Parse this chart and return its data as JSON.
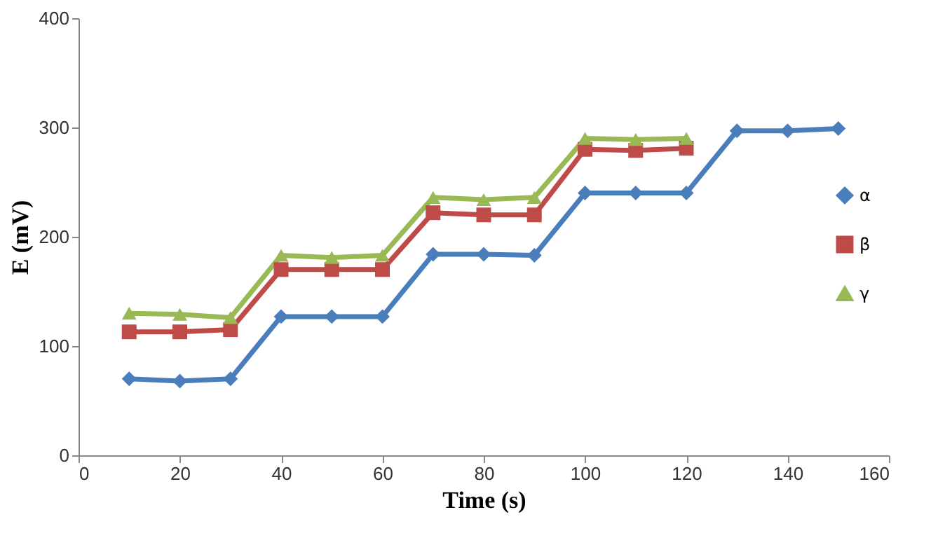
{
  "chart_data": {
    "type": "line",
    "xlabel": "Time (s)",
    "ylabel": "E (mV)",
    "xlim": [
      0,
      160
    ],
    "xticks": [
      0,
      20,
      40,
      60,
      80,
      100,
      120,
      140,
      160
    ],
    "ylim": [
      0,
      400
    ],
    "yticks": [
      0,
      100,
      200,
      300,
      400
    ],
    "grid": false,
    "legend": "right",
    "series": [
      {
        "name": "α",
        "color": "#4a7ebb",
        "marker": "diamond",
        "x": [
          10,
          20,
          30,
          40,
          50,
          60,
          70,
          80,
          90,
          100,
          110,
          120,
          130,
          140,
          150
        ],
        "values": [
          70,
          68,
          70,
          127,
          127,
          127,
          184,
          184,
          183,
          240,
          240,
          240,
          297,
          297,
          299
        ]
      },
      {
        "name": "β",
        "color": "#be4b48",
        "marker": "square",
        "x": [
          10,
          20,
          30,
          40,
          50,
          60,
          70,
          80,
          90,
          100,
          110,
          120
        ],
        "values": [
          113,
          113,
          115,
          170,
          170,
          170,
          222,
          220,
          220,
          280,
          279,
          281
        ]
      },
      {
        "name": "γ",
        "color": "#98b954",
        "marker": "triangle",
        "x": [
          10,
          20,
          30,
          40,
          50,
          60,
          70,
          80,
          90,
          100,
          110,
          120
        ],
        "values": [
          130,
          129,
          126,
          183,
          181,
          183,
          236,
          234,
          236,
          290,
          289,
          290
        ]
      }
    ]
  }
}
